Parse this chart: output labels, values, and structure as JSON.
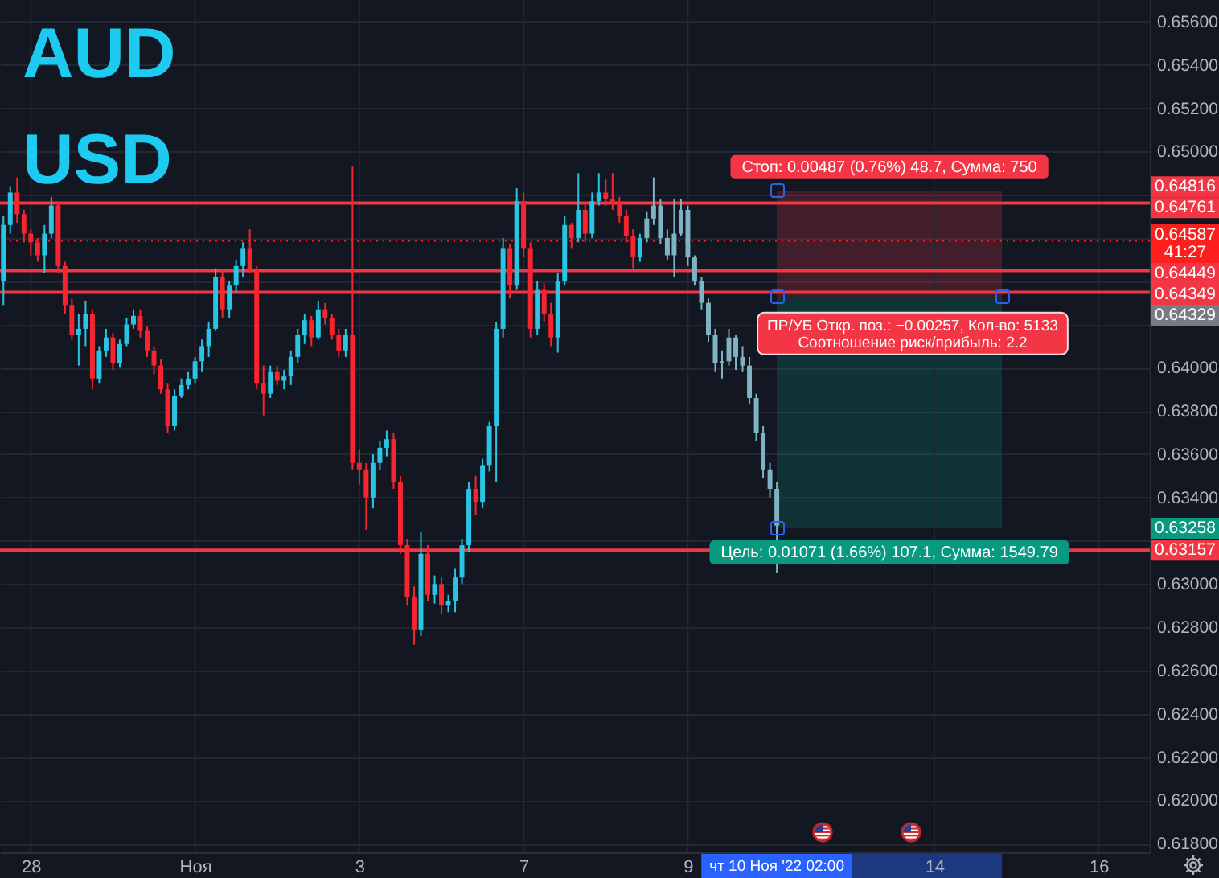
{
  "chart_data": {
    "type": "candlestick",
    "title": "AUD USD",
    "categories": [
      null,
      null,
      null,
      null,
      "28",
      null,
      null,
      null,
      null,
      null,
      null,
      null,
      null,
      null,
      null,
      null,
      null,
      null,
      null,
      null,
      null,
      null,
      null,
      null,
      null,
      null,
      null,
      null,
      "Ноя",
      null,
      null,
      null,
      null,
      null,
      null,
      null,
      null,
      null,
      null,
      null,
      null,
      null,
      null,
      null,
      null,
      null,
      null,
      null,
      null,
      null,
      null,
      null,
      "3",
      null,
      null,
      null,
      null,
      null,
      null,
      null,
      null,
      null,
      null,
      null,
      null,
      null,
      null,
      null,
      null,
      null,
      null,
      null,
      null,
      null,
      null,
      null,
      "7",
      null,
      null,
      null,
      null,
      null,
      null,
      null,
      null,
      null,
      null,
      null,
      null,
      null,
      null,
      null,
      null,
      null,
      null,
      null,
      null,
      null,
      null,
      null,
      "9",
      null,
      null,
      null,
      null,
      null,
      null,
      null,
      null,
      null,
      null,
      null,
      null,
      null,
      null,
      null,
      null,
      null,
      null,
      null,
      null,
      null,
      null,
      null,
      null,
      null,
      null,
      null,
      null,
      null,
      null,
      null,
      null,
      null,
      null,
      null,
      "14",
      null,
      null,
      null,
      null,
      null,
      null,
      null,
      null,
      null,
      null,
      null,
      null,
      null,
      null,
      null,
      null,
      null,
      null,
      null,
      null,
      null,
      null,
      null,
      "16",
      null,
      null,
      null,
      null,
      null,
      null,
      null
    ],
    "ohlc": [
      [
        0.644,
        0.647,
        0.6429,
        0.6466
      ],
      [
        0.6466,
        0.6484,
        0.6462,
        0.6481
      ],
      [
        0.6481,
        0.6488,
        0.6467,
        0.6471
      ],
      [
        0.6471,
        0.6473,
        0.6458,
        0.6462
      ],
      [
        0.6462,
        0.6464,
        0.6452,
        0.6458
      ],
      [
        0.6458,
        0.646,
        0.6449,
        0.6452
      ],
      [
        0.6452,
        0.6466,
        0.6444,
        0.6462
      ],
      [
        0.6462,
        0.6479,
        0.646,
        0.6475
      ],
      [
        0.6475,
        0.6477,
        0.6444,
        0.6447
      ],
      [
        0.6447,
        0.6449,
        0.6425,
        0.6429
      ],
      [
        0.6429,
        0.6432,
        0.6413,
        0.6415
      ],
      [
        0.6415,
        0.6425,
        0.6401,
        0.6418
      ],
      [
        0.6418,
        0.6431,
        0.641,
        0.6425
      ],
      [
        0.6425,
        0.6427,
        0.639,
        0.6395
      ],
      [
        0.6395,
        0.641,
        0.6393,
        0.6408
      ],
      [
        0.6408,
        0.6418,
        0.6405,
        0.6414
      ],
      [
        0.6414,
        0.6416,
        0.6399,
        0.6402
      ],
      [
        0.6402,
        0.6413,
        0.64,
        0.6411
      ],
      [
        0.6411,
        0.6423,
        0.641,
        0.642
      ],
      [
        0.642,
        0.6427,
        0.6418,
        0.6424
      ],
      [
        0.6424,
        0.6427,
        0.6414,
        0.6417
      ],
      [
        0.6417,
        0.6419,
        0.6405,
        0.6408
      ],
      [
        0.6408,
        0.641,
        0.6397,
        0.6401
      ],
      [
        0.6401,
        0.6404,
        0.6388,
        0.639
      ],
      [
        0.639,
        0.6393,
        0.637,
        0.6373
      ],
      [
        0.6373,
        0.639,
        0.6371,
        0.6387
      ],
      [
        0.6387,
        0.6395,
        0.6386,
        0.6392
      ],
      [
        0.6392,
        0.6398,
        0.639,
        0.6395
      ],
      [
        0.6395,
        0.6405,
        0.6393,
        0.6403
      ],
      [
        0.6403,
        0.6413,
        0.6398,
        0.641
      ],
      [
        0.641,
        0.6421,
        0.6405,
        0.6418
      ],
      [
        0.6418,
        0.6446,
        0.6417,
        0.6442
      ],
      [
        0.6442,
        0.6445,
        0.6423,
        0.6427
      ],
      [
        0.6427,
        0.644,
        0.6423,
        0.6438
      ],
      [
        0.6438,
        0.645,
        0.6435,
        0.6447
      ],
      [
        0.6447,
        0.6458,
        0.6442,
        0.6455
      ],
      [
        0.6455,
        0.6464,
        0.6444,
        0.6445
      ],
      [
        0.6445,
        0.6447,
        0.639,
        0.6393
      ],
      [
        0.6393,
        0.6401,
        0.6378,
        0.6388
      ],
      [
        0.6388,
        0.6401,
        0.6386,
        0.6398
      ],
      [
        0.6398,
        0.6401,
        0.6392,
        0.6394
      ],
      [
        0.6394,
        0.6399,
        0.639,
        0.6396
      ],
      [
        0.6396,
        0.6408,
        0.6392,
        0.6405
      ],
      [
        0.6405,
        0.6418,
        0.6402,
        0.6415
      ],
      [
        0.6415,
        0.6425,
        0.6411,
        0.6422
      ],
      [
        0.6422,
        0.6424,
        0.641,
        0.6414
      ],
      [
        0.6414,
        0.6431,
        0.6413,
        0.6427
      ],
      [
        0.6427,
        0.643,
        0.642,
        0.6423
      ],
      [
        0.6423,
        0.6425,
        0.6413,
        0.6415
      ],
      [
        0.6415,
        0.6418,
        0.6405,
        0.6408
      ],
      [
        0.6408,
        0.6418,
        0.6405,
        0.6415
      ],
      [
        0.6415,
        0.6493,
        0.6353,
        0.6356
      ],
      [
        0.6356,
        0.6362,
        0.6346,
        0.6353
      ],
      [
        0.6353,
        0.6356,
        0.6325,
        0.634
      ],
      [
        0.634,
        0.636,
        0.6335,
        0.6356
      ],
      [
        0.6356,
        0.6366,
        0.6353,
        0.6363
      ],
      [
        0.6363,
        0.6371,
        0.6359,
        0.6367
      ],
      [
        0.6367,
        0.637,
        0.6344,
        0.6347
      ],
      [
        0.6347,
        0.635,
        0.6314,
        0.6318
      ],
      [
        0.6318,
        0.6321,
        0.629,
        0.6294
      ],
      [
        0.6294,
        0.6299,
        0.6272,
        0.6279
      ],
      [
        0.6279,
        0.6324,
        0.6276,
        0.6314
      ],
      [
        0.6314,
        0.6318,
        0.6292,
        0.6295
      ],
      [
        0.6295,
        0.6304,
        0.6291,
        0.63
      ],
      [
        0.63,
        0.6303,
        0.6286,
        0.629
      ],
      [
        0.629,
        0.6295,
        0.6287,
        0.6292
      ],
      [
        0.6292,
        0.6307,
        0.6287,
        0.6303
      ],
      [
        0.6303,
        0.6321,
        0.63,
        0.6318
      ],
      [
        0.6318,
        0.6347,
        0.6315,
        0.6344
      ],
      [
        0.6344,
        0.635,
        0.6332,
        0.6338
      ],
      [
        0.6338,
        0.6358,
        0.6335,
        0.6355
      ],
      [
        0.6355,
        0.6375,
        0.6352,
        0.6373
      ],
      [
        0.6373,
        0.6421,
        0.6347,
        0.6418
      ],
      [
        0.6418,
        0.646,
        0.6414,
        0.6455
      ],
      [
        0.6455,
        0.6457,
        0.6432,
        0.6438
      ],
      [
        0.6438,
        0.6483,
        0.6436,
        0.6477
      ],
      [
        0.6477,
        0.6481,
        0.6451,
        0.6455
      ],
      [
        0.6455,
        0.6458,
        0.6414,
        0.6418
      ],
      [
        0.6418,
        0.644,
        0.6415,
        0.6436
      ],
      [
        0.6436,
        0.6439,
        0.6421,
        0.6425
      ],
      [
        0.6425,
        0.643,
        0.641,
        0.6414
      ],
      [
        0.6414,
        0.6444,
        0.6407,
        0.644
      ],
      [
        0.644,
        0.647,
        0.6438,
        0.6466
      ],
      [
        0.6466,
        0.6467,
        0.6455,
        0.646
      ],
      [
        0.646,
        0.649,
        0.6458,
        0.6473
      ],
      [
        0.6473,
        0.6476,
        0.6458,
        0.6462
      ],
      [
        0.6462,
        0.6481,
        0.646,
        0.6477
      ],
      [
        0.6477,
        0.649,
        0.6475,
        0.6481
      ],
      [
        0.6481,
        0.6487,
        0.6475,
        0.6478
      ],
      [
        0.6478,
        0.649,
        0.6473,
        0.6476
      ],
      [
        0.6476,
        0.6479,
        0.6467,
        0.647
      ],
      [
        0.647,
        0.6473,
        0.6458,
        0.6461
      ],
      [
        0.6461,
        0.6464,
        0.6446,
        0.6451
      ],
      [
        0.6451,
        0.6462,
        0.6449,
        0.646
      ],
      [
        0.646,
        0.6472,
        0.6458,
        0.6469
      ],
      [
        0.6469,
        0.6488,
        0.6466,
        0.6475
      ],
      [
        0.6475,
        0.6478,
        0.6457,
        0.646
      ],
      [
        0.646,
        0.6464,
        0.645,
        0.6452
      ],
      [
        0.6452,
        0.6478,
        0.6442,
        0.6462
      ],
      [
        0.6462,
        0.6478,
        0.6461,
        0.6473
      ],
      [
        0.6473,
        0.6475,
        0.6447,
        0.6451
      ],
      [
        0.6451,
        0.6452,
        0.6438,
        0.644
      ],
      [
        0.644,
        0.6442,
        0.6427,
        0.643
      ],
      [
        0.643,
        0.6432,
        0.6412,
        0.6415
      ],
      [
        0.6415,
        0.6418,
        0.6398,
        0.6402
      ],
      [
        0.6402,
        0.6408,
        0.6395,
        0.6403
      ],
      [
        0.6403,
        0.6418,
        0.6401,
        0.6414
      ],
      [
        0.6414,
        0.6415,
        0.6399,
        0.6405
      ],
      [
        0.6405,
        0.641,
        0.6398,
        0.6401
      ],
      [
        0.6401,
        0.6405,
        0.6383,
        0.6386
      ],
      [
        0.6386,
        0.6388,
        0.6366,
        0.637
      ],
      [
        0.637,
        0.6373,
        0.6349,
        0.6353
      ],
      [
        0.6353,
        0.6356,
        0.634,
        0.6344
      ],
      [
        0.6344,
        0.6347,
        0.6305,
        0.6327
      ],
      null,
      null,
      null,
      null,
      null,
      null,
      null,
      null,
      null,
      null,
      null,
      null,
      null,
      null,
      null,
      null,
      null,
      null,
      null,
      null,
      null,
      null,
      null,
      null,
      null,
      null,
      null,
      null,
      null,
      null,
      null,
      null,
      null,
      null,
      null,
      null,
      null,
      null,
      null,
      null,
      null,
      null,
      null,
      null,
      null,
      null,
      null,
      null,
      null,
      null,
      null,
      null,
      null,
      null
    ],
    "colors": [
      "#2bc4e2",
      "#2bc4e2",
      "#f7252f",
      "#f7252f",
      "#f7252f",
      "#f7252f",
      "#2bc4e2",
      "#2bc4e2",
      "#f7252f",
      "#f7252f",
      "#f7252f",
      "#2bc4e2",
      "#2bc4e2",
      "#f7252f",
      "#2bc4e2",
      "#2bc4e2",
      "#f7252f",
      "#2bc4e2",
      "#2bc4e2",
      "#2bc4e2",
      "#f7252f",
      "#f7252f",
      "#f7252f",
      "#f7252f",
      "#f7252f",
      "#2bc4e2",
      "#2bc4e2",
      "#2bc4e2",
      "#2bc4e2",
      "#2bc4e2",
      "#2bc4e2",
      "#2bc4e2",
      "#f7252f",
      "#2bc4e2",
      "#2bc4e2",
      "#2bc4e2",
      "#f7252f",
      "#f7252f",
      "#f7252f",
      "#2bc4e2",
      "#f7252f",
      "#2bc4e2",
      "#2bc4e2",
      "#2bc4e2",
      "#2bc4e2",
      "#f7252f",
      "#2bc4e2",
      "#f7252f",
      "#f7252f",
      "#f7252f",
      "#2bc4e2",
      "#f7252f",
      "#f7252f",
      "#f7252f",
      "#2bc4e2",
      "#2bc4e2",
      "#2bc4e2",
      "#f7252f",
      "#f7252f",
      "#f7252f",
      "#f7252f",
      "#2bc4e2",
      "#f7252f",
      "#2bc4e2",
      "#f7252f",
      "#2bc4e2",
      "#2bc4e2",
      "#2bc4e2",
      "#2bc4e2",
      "#f7252f",
      "#2bc4e2",
      "#2bc4e2",
      "#2bc4e2",
      "#2bc4e2",
      "#f7252f",
      "#2bc4e2",
      "#f7252f",
      "#f7252f",
      "#2bc4e2",
      "#f7252f",
      "#f7252f",
      "#2bc4e2",
      "#2bc4e2",
      "#f7252f",
      "#2bc4e2",
      "#f7252f",
      "#2bc4e2",
      "#2bc4e2",
      "#f7252f",
      "#f7252f",
      "#f7252f",
      "#f7252f",
      "#f7252f",
      "#2bc4e2",
      "#7eb3c4",
      "#7eb3c4",
      "#7eb3c4",
      "#7eb3c4",
      "#7eb3c4",
      "#7eb3c4",
      "#7eb3c4",
      "#7eb3c4",
      "#7eb3c4",
      "#7eb3c4",
      "#7eb3c4",
      "#7eb3c4",
      "#7eb3c4",
      "#7eb3c4",
      "#7eb3c4",
      "#7eb3c4",
      "#7eb3c4",
      "#7eb3c4",
      "#7eb3c4",
      "#7eb3c4",
      null,
      null,
      null,
      null,
      null,
      null,
      null,
      null,
      null,
      null,
      null,
      null,
      null,
      null,
      null,
      null,
      null,
      null,
      null,
      null,
      null,
      null,
      null,
      null,
      null,
      null,
      null,
      null,
      null,
      null,
      null,
      null,
      null,
      null,
      null,
      null,
      null,
      null,
      null,
      null,
      null,
      null,
      null,
      null,
      null,
      null,
      null,
      null,
      null,
      null,
      null,
      null,
      null,
      null
    ],
    "ylim": [
      0.6176,
      0.657
    ],
    "yticks": [
      {
        "value": 0.618,
        "label": "0.61800"
      },
      {
        "value": 0.62,
        "label": "0.62000"
      },
      {
        "value": 0.622,
        "label": "0.62200"
      },
      {
        "value": 0.624,
        "label": "0.62400"
      },
      {
        "value": 0.626,
        "label": "0.62600"
      },
      {
        "value": 0.628,
        "label": "0.62800"
      },
      {
        "value": 0.63,
        "label": "0.63000"
      },
      {
        "value": 0.632,
        "label": null
      },
      {
        "value": 0.634,
        "label": "0.63400"
      },
      {
        "value": 0.636,
        "label": "0.63600"
      },
      {
        "value": 0.638,
        "label": "0.63800"
      },
      {
        "value": 0.64,
        "label": "0.64000"
      },
      {
        "value": 0.642,
        "label": null
      },
      {
        "value": 0.644,
        "label": null
      },
      {
        "value": 0.646,
        "label": null
      },
      {
        "value": 0.648,
        "label": null
      },
      {
        "value": 0.65,
        "label": "0.65000"
      },
      {
        "value": 0.652,
        "label": "0.65200"
      },
      {
        "value": 0.654,
        "label": "0.65400"
      },
      {
        "value": 0.656,
        "label": "0.65600"
      }
    ],
    "grid": true,
    "ref_lines": [
      {
        "axis": "y",
        "value": 0.64761,
        "label": "0.64761",
        "color": "#f23645"
      },
      {
        "axis": "y",
        "value": 0.64587,
        "label": "0.64587\n41:27",
        "color": "#ff1e1e",
        "line_style": "dotted"
      },
      {
        "axis": "y",
        "value": 0.64449,
        "label": "0.64449",
        "color": "#f23645"
      },
      {
        "axis": "y",
        "value": 0.64349,
        "label": "0.64349",
        "color": "#f23645"
      },
      {
        "axis": "y",
        "value": 0.63157,
        "label": "0.63157",
        "color": "#f23645"
      }
    ],
    "bands": [
      {
        "axis": "y",
        "from": 0.64329,
        "to": 0.64816,
        "label": "Стоп: 0.00487 (0.76%) 48.7, Сумма: 750",
        "color": "#f23645"
      },
      {
        "axis": "y",
        "from": 0.63258,
        "to": 0.64329,
        "label": "Цель: 0.01071 (1.66%) 107.1, Сумма: 1549.79",
        "color": "#089981"
      }
    ],
    "annotations": [
      "0.64816",
      "0.64329",
      "0.63258",
      "ПР/УБ Откр. поз.: −0.00257, Кол-во: 5133\nСоотношение риск/прибыль: 2.2",
      "чт 10 Ноя '22 02:00"
    ]
  }
}
